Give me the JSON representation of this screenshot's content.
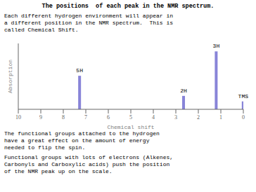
{
  "chart_data": {
    "type": "bar",
    "title": "The positions  of each peak in the NMR spectrum.",
    "annotations": [
      [
        "Each different hydrogen environment will appear in",
        "a different position in the NMR spectrum.  This is",
        "called Chemical Shift."
      ],
      [
        "The functional groups attached to the hydrogen",
        "have a great effect on the amount of energy",
        "needed to flip the spin."
      ],
      [
        "Functional groups with lots of electrons (Alkenes,",
        "Carbonyls and Carboxylic acids) push the position",
        "of the NMR peak up on the scale."
      ]
    ],
    "x": [
      7.27,
      2.65,
      1.2,
      0.0
    ],
    "values": [
      0.55,
      0.22,
      0.95,
      0.13
    ],
    "labels": [
      "5H",
      "2H",
      "3H",
      "TMS"
    ],
    "x_label": "Chemical shift",
    "y_label": "Absorption",
    "xlim": [
      10,
      0
    ],
    "xticks": [
      0,
      1,
      2,
      3,
      4,
      5,
      6,
      7,
      8,
      9,
      10
    ],
    "ylim": [
      0,
      1.08
    ],
    "yticks": [],
    "tick_labels": "x",
    "color": "#8884d8",
    "grid": false
  }
}
